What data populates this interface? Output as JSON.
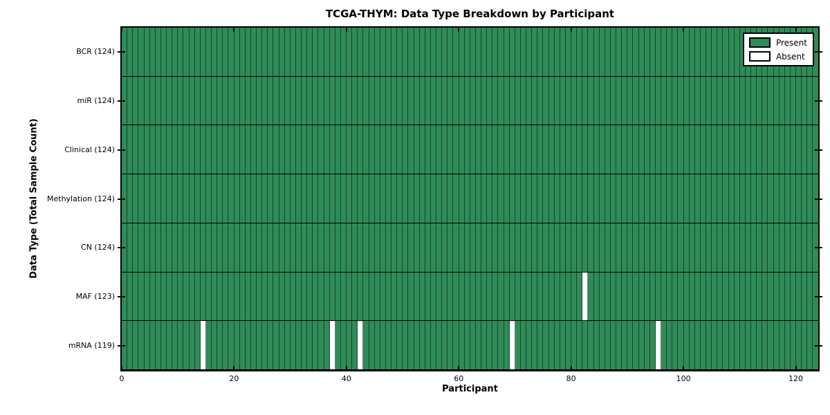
{
  "chart_data": {
    "type": "heatmap",
    "title": "TCGA-THYM: Data Type Breakdown by Participant",
    "xlabel": "Participant",
    "ylabel": "Data Type (Total Sample Count)",
    "x_ticks": [
      0,
      20,
      40,
      60,
      80,
      100,
      120
    ],
    "x_range": [
      0,
      124
    ],
    "n_participants": 124,
    "rows": [
      {
        "label": "BCR",
        "total_samples": 124,
        "tick_label": "BCR (124)",
        "absent_participants": []
      },
      {
        "label": "miR",
        "total_samples": 124,
        "tick_label": "miR (124)",
        "absent_participants": []
      },
      {
        "label": "Clinical",
        "total_samples": 124,
        "tick_label": "Clinical (124)",
        "absent_participants": []
      },
      {
        "label": "Methylation",
        "total_samples": 124,
        "tick_label": "Methylation (124)",
        "absent_participants": []
      },
      {
        "label": "CN",
        "total_samples": 124,
        "tick_label": "CN (124)",
        "absent_participants": []
      },
      {
        "label": "MAF",
        "total_samples": 123,
        "tick_label": "MAF (123)",
        "absent_participants": [
          82
        ]
      },
      {
        "label": "mRNA",
        "total_samples": 119,
        "tick_label": "mRNA (119)",
        "absent_participants": [
          14,
          37,
          42,
          69,
          95
        ]
      }
    ],
    "colors": {
      "present": "#2f8b58",
      "absent": "#ffffff",
      "cell_edge": "rgba(0,0,0,0.5)",
      "row_separator": "#000000",
      "spine": "#000000"
    },
    "legend": {
      "position": "upper right",
      "items": [
        {
          "label": "Present",
          "color": "#2f8b58"
        },
        {
          "label": "Absent",
          "color": "#ffffff"
        }
      ]
    }
  }
}
